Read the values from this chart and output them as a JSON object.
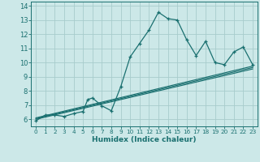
{
  "title": "",
  "xlabel": "Humidex (Indice chaleur)",
  "bg_color": "#cce8e8",
  "line_color": "#1a7070",
  "grid_color": "#a8cccc",
  "xlim": [
    -0.5,
    23.5
  ],
  "ylim": [
    5.5,
    14.3
  ],
  "xticks": [
    0,
    1,
    2,
    3,
    4,
    5,
    6,
    7,
    8,
    9,
    10,
    11,
    12,
    13,
    14,
    15,
    16,
    17,
    18,
    19,
    20,
    21,
    22,
    23
  ],
  "yticks": [
    6,
    7,
    8,
    9,
    10,
    11,
    12,
    13,
    14
  ],
  "main_series_x": [
    0,
    1,
    2,
    3,
    4,
    5,
    5.5,
    6,
    7,
    8,
    9,
    10,
    11,
    12,
    13,
    14,
    15,
    16,
    17,
    18,
    19,
    20,
    21,
    22,
    23
  ],
  "main_series_y": [
    5.9,
    6.3,
    6.3,
    6.2,
    6.4,
    6.55,
    7.4,
    7.5,
    6.95,
    6.6,
    8.3,
    10.4,
    11.35,
    12.3,
    13.55,
    13.1,
    13.0,
    11.6,
    10.5,
    11.5,
    10.0,
    9.85,
    10.75,
    11.1,
    9.85
  ],
  "linear_lines": [
    {
      "x": [
        0,
        23
      ],
      "y": [
        6.0,
        9.55
      ]
    },
    {
      "x": [
        0,
        23
      ],
      "y": [
        6.05,
        9.65
      ]
    },
    {
      "x": [
        0,
        23
      ],
      "y": [
        6.1,
        9.75
      ]
    }
  ]
}
